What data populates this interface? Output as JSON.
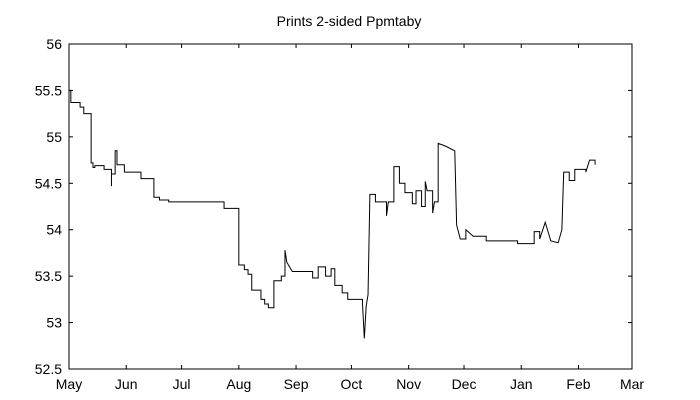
{
  "chart_data": {
    "type": "line",
    "title": "Prints 2-sided Ppmtaby",
    "xlabel": "",
    "ylabel": "",
    "ylim": [
      52.5,
      56
    ],
    "yticks": [
      "52.5",
      "53",
      "53.5",
      "54",
      "54.5",
      "55",
      "55.5",
      "56"
    ],
    "xlim": [
      "2023-05-01",
      "2024-03-01"
    ],
    "xticks": [
      {
        "date": "2023-05-01",
        "label": "May"
      },
      {
        "date": "2023-06-01",
        "label": "Jun"
      },
      {
        "date": "2023-07-01",
        "label": "Jul"
      },
      {
        "date": "2023-08-01",
        "label": "Aug"
      },
      {
        "date": "2023-09-01",
        "label": "Sep"
      },
      {
        "date": "2023-10-01",
        "label": "Oct"
      },
      {
        "date": "2023-11-01",
        "label": "Nov"
      },
      {
        "date": "2023-12-01",
        "label": "Dec"
      },
      {
        "date": "2024-01-01",
        "label": "Jan"
      },
      {
        "date": "2024-02-01",
        "label": "Feb"
      },
      {
        "date": "2024-03-01",
        "label": "Mar"
      }
    ],
    "grid": false,
    "series": [
      {
        "color": "#000000",
        "points": [
          [
            "2023-05-01",
            55.5
          ],
          [
            "2023-05-02",
            55.5
          ],
          [
            "2023-05-02",
            55.37
          ],
          [
            "2023-05-07",
            55.37
          ],
          [
            "2023-05-07",
            55.32
          ],
          [
            "2023-05-09",
            55.32
          ],
          [
            "2023-05-09",
            55.25
          ],
          [
            "2023-05-13",
            55.25
          ],
          [
            "2023-05-13",
            54.72
          ],
          [
            "2023-05-14",
            54.72
          ],
          [
            "2023-05-14",
            54.67
          ],
          [
            "2023-05-15",
            54.67
          ],
          [
            "2023-05-15",
            54.69
          ],
          [
            "2023-05-20",
            54.69
          ],
          [
            "2023-05-20",
            54.65
          ],
          [
            "2023-05-24",
            54.65
          ],
          [
            "2023-05-24",
            54.47
          ],
          [
            "2023-05-24",
            54.6
          ],
          [
            "2023-05-26",
            54.6
          ],
          [
            "2023-05-26",
            54.85
          ],
          [
            "2023-05-27",
            54.85
          ],
          [
            "2023-05-27",
            54.7
          ],
          [
            "2023-05-31",
            54.7
          ],
          [
            "2023-05-31",
            54.62
          ],
          [
            "2023-06-09",
            54.62
          ],
          [
            "2023-06-09",
            54.55
          ],
          [
            "2023-06-16",
            54.55
          ],
          [
            "2023-06-16",
            54.35
          ],
          [
            "2023-06-19",
            54.35
          ],
          [
            "2023-06-19",
            54.32
          ],
          [
            "2023-06-24",
            54.32
          ],
          [
            "2023-06-24",
            54.3
          ],
          [
            "2023-07-24",
            54.3
          ],
          [
            "2023-07-24",
            54.23
          ],
          [
            "2023-08-01",
            54.23
          ],
          [
            "2023-08-01",
            53.62
          ],
          [
            "2023-08-04",
            53.62
          ],
          [
            "2023-08-04",
            53.57
          ],
          [
            "2023-08-06",
            53.57
          ],
          [
            "2023-08-06",
            53.52
          ],
          [
            "2023-08-08",
            53.52
          ],
          [
            "2023-08-08",
            53.35
          ],
          [
            "2023-08-13",
            53.35
          ],
          [
            "2023-08-13",
            53.25
          ],
          [
            "2023-08-15",
            53.25
          ],
          [
            "2023-08-15",
            53.2
          ],
          [
            "2023-08-17",
            53.2
          ],
          [
            "2023-08-17",
            53.16
          ],
          [
            "2023-08-20",
            53.16
          ],
          [
            "2023-08-20",
            53.45
          ],
          [
            "2023-08-24",
            53.45
          ],
          [
            "2023-08-24",
            53.5
          ],
          [
            "2023-08-26",
            53.5
          ],
          [
            "2023-08-26",
            53.78
          ],
          [
            "2023-08-27",
            53.65
          ],
          [
            "2023-08-30",
            53.55
          ],
          [
            "2023-09-10",
            53.55
          ],
          [
            "2023-09-10",
            53.48
          ],
          [
            "2023-09-13",
            53.48
          ],
          [
            "2023-09-13",
            53.6
          ],
          [
            "2023-09-17",
            53.6
          ],
          [
            "2023-09-17",
            53.5
          ],
          [
            "2023-09-20",
            53.5
          ],
          [
            "2023-09-20",
            53.58
          ],
          [
            "2023-09-22",
            53.58
          ],
          [
            "2023-09-22",
            53.4
          ],
          [
            "2023-09-26",
            53.4
          ],
          [
            "2023-09-26",
            53.32
          ],
          [
            "2023-09-29",
            53.32
          ],
          [
            "2023-09-29",
            53.25
          ],
          [
            "2023-10-07",
            53.25
          ],
          [
            "2023-10-07",
            53.2
          ],
          [
            "2023-10-08",
            52.83
          ],
          [
            "2023-10-09",
            53.18
          ],
          [
            "2023-10-10",
            53.3
          ],
          [
            "2023-10-11",
            54.38
          ],
          [
            "2023-10-14",
            54.38
          ],
          [
            "2023-10-14",
            54.3
          ],
          [
            "2023-10-20",
            54.3
          ],
          [
            "2023-10-20",
            54.15
          ],
          [
            "2023-10-21",
            54.3
          ],
          [
            "2023-10-24",
            54.3
          ],
          [
            "2023-10-24",
            54.68
          ],
          [
            "2023-10-27",
            54.68
          ],
          [
            "2023-10-27",
            54.5
          ],
          [
            "2023-10-30",
            54.5
          ],
          [
            "2023-10-30",
            54.4
          ],
          [
            "2023-11-03",
            54.4
          ],
          [
            "2023-11-03",
            54.28
          ],
          [
            "2023-11-05",
            54.28
          ],
          [
            "2023-11-05",
            54.42
          ],
          [
            "2023-11-08",
            54.42
          ],
          [
            "2023-11-08",
            54.25
          ],
          [
            "2023-11-10",
            54.25
          ],
          [
            "2023-11-10",
            54.52
          ],
          [
            "2023-11-11",
            54.42
          ],
          [
            "2023-11-14",
            54.42
          ],
          [
            "2023-11-14",
            54.18
          ],
          [
            "2023-11-15",
            54.3
          ],
          [
            "2023-11-17",
            54.3
          ],
          [
            "2023-11-17",
            54.93
          ],
          [
            "2023-11-21",
            54.9
          ],
          [
            "2023-11-26",
            54.85
          ],
          [
            "2023-11-27",
            54.05
          ],
          [
            "2023-11-29",
            53.9
          ],
          [
            "2023-12-02",
            53.9
          ],
          [
            "2023-12-02",
            54.0
          ],
          [
            "2023-12-06",
            53.93
          ],
          [
            "2023-12-13",
            53.93
          ],
          [
            "2023-12-13",
            53.88
          ],
          [
            "2023-12-30",
            53.88
          ],
          [
            "2023-12-30",
            53.85
          ],
          [
            "2024-01-08",
            53.85
          ],
          [
            "2024-01-08",
            53.98
          ],
          [
            "2024-01-11",
            53.98
          ],
          [
            "2024-01-11",
            53.9
          ],
          [
            "2024-01-14",
            54.08
          ],
          [
            "2024-01-17",
            53.88
          ],
          [
            "2024-01-21",
            53.86
          ],
          [
            "2024-01-23",
            54.0
          ],
          [
            "2024-01-24",
            54.62
          ],
          [
            "2024-01-27",
            54.62
          ],
          [
            "2024-01-27",
            54.53
          ],
          [
            "2024-01-30",
            54.53
          ],
          [
            "2024-01-30",
            54.65
          ],
          [
            "2024-02-05",
            54.65
          ],
          [
            "2024-02-05",
            54.62
          ],
          [
            "2024-02-07",
            54.75
          ],
          [
            "2024-02-10",
            54.75
          ],
          [
            "2024-02-10",
            54.7
          ]
        ]
      }
    ]
  }
}
